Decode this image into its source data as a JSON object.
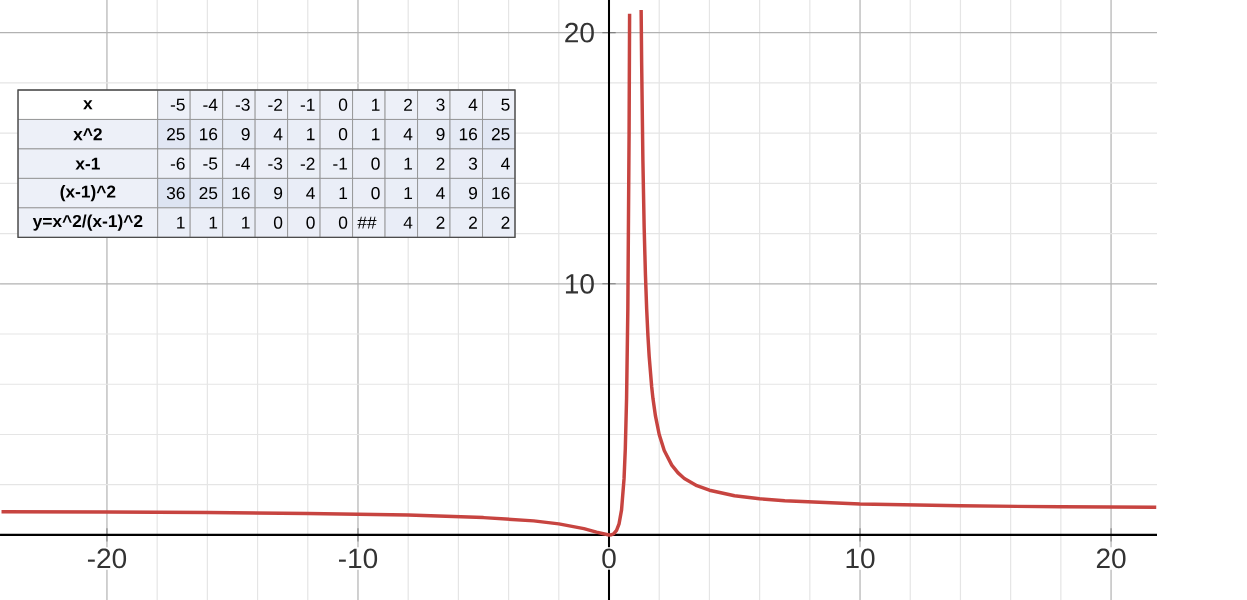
{
  "chart_data": [
    {
      "type": "line",
      "xlim": [
        -24.26,
        21.83
      ],
      "ylim": [
        -2.59,
        21.3
      ],
      "xticks": [
        -20,
        -10,
        0,
        10,
        20
      ],
      "yticks": [
        {
          "value": 0,
          "label": null
        },
        10,
        20
      ],
      "grid": true,
      "series": [
        {
          "color": "#c74440",
          "x": [
            -24.2,
            -20,
            -16,
            -12,
            -8,
            -5,
            -3,
            -2,
            -1,
            -0.5,
            0,
            0.1,
            0.2,
            0.3,
            0.4,
            0.5,
            0.6,
            0.65,
            0.7,
            0.75,
            0.8,
            0.82,
            1,
            1.28,
            1.3,
            1.35,
            1.4,
            1.45,
            1.5,
            1.55,
            1.6,
            1.7,
            1.75,
            1.85,
            2,
            2.2,
            2.5,
            2.75,
            3,
            3.5,
            4,
            5,
            6,
            7,
            10,
            14,
            18,
            21.8
          ],
          "values": [
            0.92,
            0.91,
            0.89,
            0.85,
            0.79,
            0.69,
            0.56,
            0.44,
            0.25,
            0.11,
            0,
            0.01,
            0.06,
            0.18,
            0.44,
            1,
            2.25,
            3.45,
            5.44,
            9,
            16,
            20.75,
            null,
            20.9,
            18.8,
            14.9,
            12.25,
            10.4,
            9,
            7.94,
            7.11,
            5.9,
            5.44,
            4.74,
            4,
            3.36,
            2.78,
            2.47,
            2.25,
            1.96,
            1.78,
            1.56,
            1.44,
            1.36,
            1.23,
            1.16,
            1.12,
            1.1
          ]
        }
      ]
    },
    {
      "type": "heatmap",
      "xlabel": "x",
      "categories": [
        "-5",
        "-4",
        "-3",
        "-2",
        "-1",
        "0",
        "1",
        "2",
        "3",
        "4",
        "5"
      ],
      "y_categories": [
        "x^2",
        "x-1",
        "(x-1)^2",
        "y=x^2/(x-1)^2"
      ],
      "cells": [
        [
          25,
          16,
          9,
          4,
          1,
          0,
          1,
          4,
          9,
          16,
          25
        ],
        [
          -6,
          -5,
          -4,
          -3,
          -2,
          -1,
          0,
          1,
          2,
          3,
          4
        ],
        [
          36,
          25,
          16,
          9,
          4,
          1,
          0,
          1,
          4,
          9,
          16
        ],
        [
          1,
          1,
          1,
          0,
          0,
          0,
          null,
          4,
          2,
          2,
          2
        ]
      ],
      "cell_labels": [
        [
          "25",
          "16",
          "9",
          "4",
          "1",
          "0",
          "1",
          "4",
          "9",
          "16",
          "25"
        ],
        [
          "-6",
          "-5",
          "-4",
          "-3",
          "-2",
          "-1",
          "0",
          "1",
          "2",
          "3",
          "4"
        ],
        [
          "36",
          "25",
          "16",
          "9",
          "4",
          "1",
          "0",
          "1",
          "4",
          "9",
          "16"
        ],
        [
          "1",
          "1",
          "1",
          "0",
          "0",
          "0",
          "##",
          "4",
          "2",
          "2",
          "2"
        ]
      ]
    }
  ]
}
